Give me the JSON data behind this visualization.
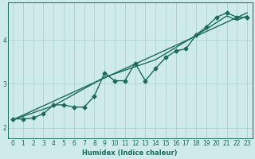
{
  "xlabel": "Humidex (Indice chaleur)",
  "bg_color": "#ceeaea",
  "grid_color": "#aed4d4",
  "line_color": "#1a6b5a",
  "xlim": [
    -0.5,
    23.5
  ],
  "ylim": [
    1.75,
    4.85
  ],
  "xticks": [
    0,
    1,
    2,
    3,
    4,
    5,
    6,
    7,
    8,
    9,
    10,
    11,
    12,
    13,
    14,
    15,
    16,
    17,
    18,
    19,
    20,
    21,
    22,
    23
  ],
  "yticks": [
    2,
    3,
    4
  ],
  "line_zigzag_x": [
    0,
    1,
    2,
    3,
    4,
    5,
    6,
    7,
    8,
    9,
    10,
    11,
    12,
    13,
    14,
    15,
    16,
    17,
    18,
    19,
    20,
    21,
    22,
    23
  ],
  "line_zigzag_y": [
    2.2,
    2.2,
    2.22,
    2.32,
    2.52,
    2.52,
    2.47,
    2.47,
    2.72,
    3.25,
    3.07,
    3.07,
    3.47,
    3.07,
    3.35,
    3.6,
    3.75,
    3.8,
    4.12,
    4.3,
    4.52,
    4.62,
    4.52,
    4.52
  ],
  "line_trend1_x": [
    0,
    23
  ],
  "line_trend1_y": [
    2.18,
    4.62
  ],
  "line_trend2_x": [
    0,
    4,
    9,
    14,
    19,
    21,
    22,
    23
  ],
  "line_trend2_y": [
    2.18,
    2.5,
    3.15,
    3.55,
    4.25,
    4.55,
    4.45,
    4.55
  ],
  "marker": "D",
  "marker_size": 2.5,
  "line_width": 1.0
}
